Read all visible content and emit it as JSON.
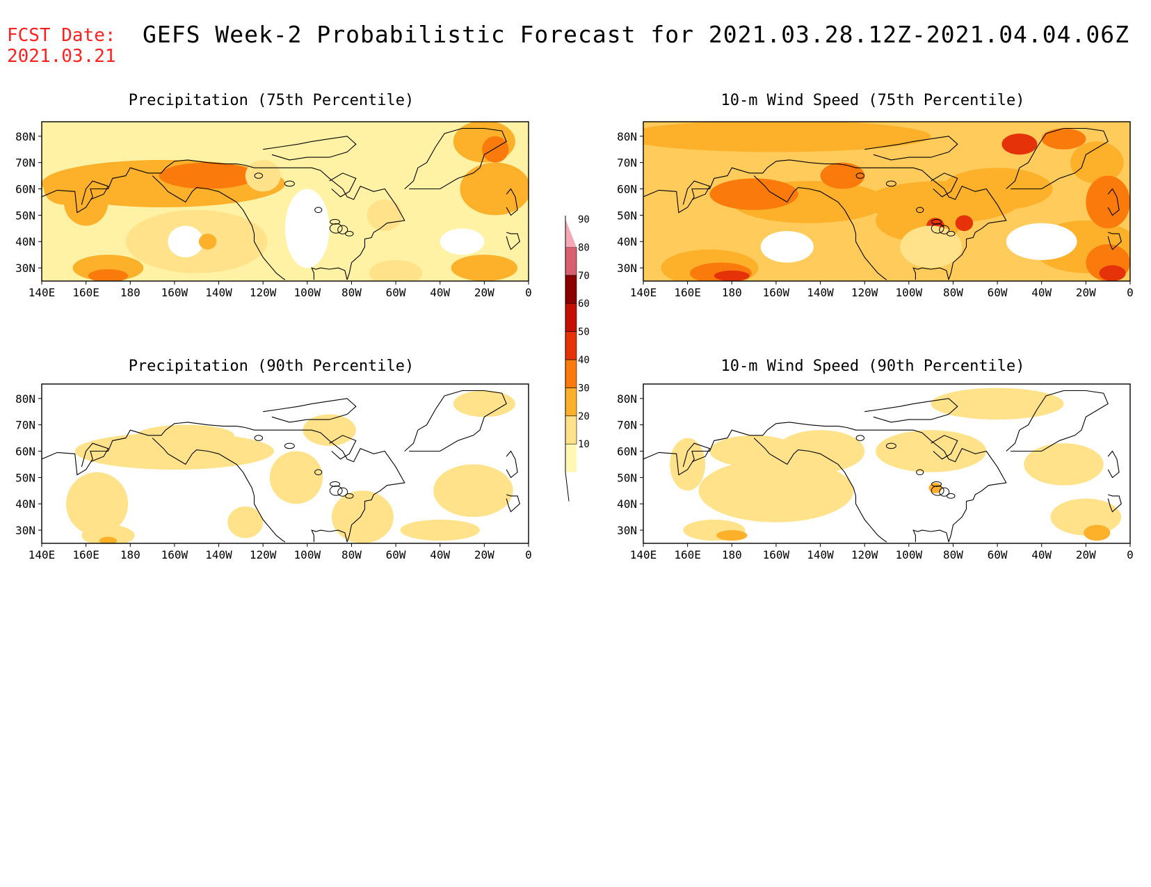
{
  "header": {
    "fcst_label": "FCST Date:",
    "fcst_date": "2021.03.21",
    "title": "GEFS Week-2 Probabilistic Forecast for 2021.03.28.12Z-2021.04.04.06Z"
  },
  "panels": [
    {
      "title": "Precipitation (75th Percentile)"
    },
    {
      "title": "10-m Wind Speed (75th Percentile)"
    },
    {
      "title": "Precipitation (90th Percentile)"
    },
    {
      "title": "10-m Wind Speed (90th Percentile)"
    }
  ],
  "axes": {
    "lon_labels": [
      "140E",
      "160E",
      "180",
      "160W",
      "140W",
      "120W",
      "100W",
      "80W",
      "60W",
      "40W",
      "20W",
      "0"
    ],
    "lat_labels": [
      "80N",
      "70N",
      "60N",
      "50N",
      "40N",
      "30N"
    ]
  },
  "colorbar": {
    "levels": [
      "10",
      "20",
      "30",
      "40",
      "50",
      "60",
      "70",
      "80",
      "90"
    ],
    "colors": [
      "#fff8b4",
      "#ffe28a",
      "#fdb02a",
      "#fb7a0c",
      "#e53208",
      "#c41000",
      "#8c0000",
      "#d8606e",
      "#f4a8b4"
    ]
  }
}
